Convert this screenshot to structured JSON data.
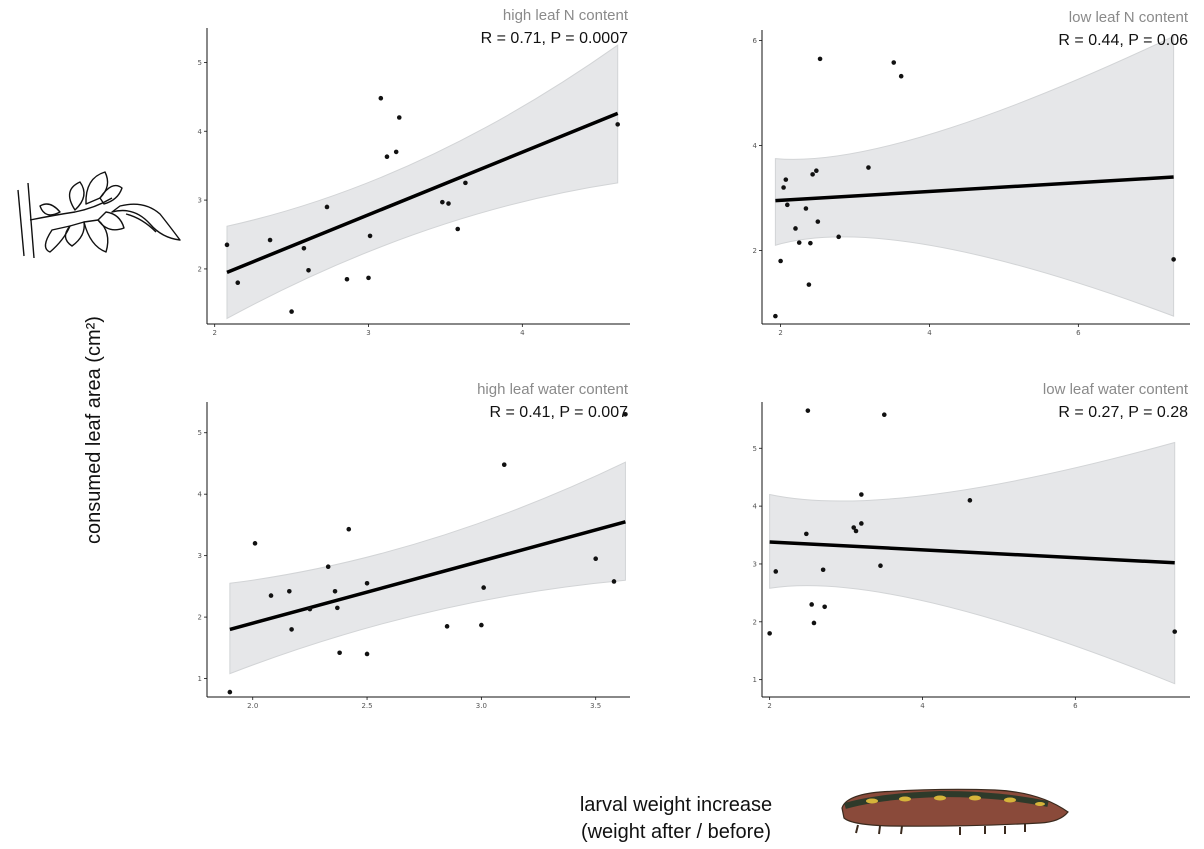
{
  "figure": {
    "ylabel": "consumed leaf area (cm²)",
    "xlabel_line1": "larval weight increase",
    "xlabel_line2": "(weight after / before)",
    "illustrations": [
      "leaf-sprig-icon",
      "caterpillar-icon"
    ]
  },
  "chart_data": [
    {
      "type": "scatter",
      "title": "high leaf N content",
      "stat": "R = 0.71, P = 0.0007",
      "xlim": [
        1.95,
        4.7
      ],
      "ylim": [
        1.2,
        5.5
      ],
      "xticks": [
        2,
        3,
        4
      ],
      "yticks": [
        2,
        3,
        4,
        5
      ],
      "x": [
        2.08,
        2.15,
        2.36,
        2.5,
        2.58,
        2.61,
        2.73,
        2.86,
        3.0,
        3.01,
        3.08,
        3.12,
        3.18,
        3.2,
        3.48,
        3.52,
        3.58,
        3.63,
        4.62
      ],
      "y": [
        2.35,
        1.8,
        2.42,
        1.38,
        2.3,
        1.98,
        2.9,
        1.85,
        1.87,
        2.48,
        4.48,
        3.63,
        3.7,
        4.2,
        2.97,
        2.95,
        2.58,
        3.25,
        4.1
      ],
      "fit": {
        "x": [
          2.08,
          4.62
        ],
        "y": [
          1.95,
          4.26
        ]
      },
      "ci": {
        "x": [
          2.08,
          3.35,
          4.62
        ],
        "upper": [
          2.62,
          3.25,
          5.25
        ],
        "lower": [
          1.28,
          2.82,
          3.25
        ]
      }
    },
    {
      "type": "scatter",
      "title": "low leaf N content",
      "stat": "R = 0.44, P = 0.06",
      "xlim": [
        1.75,
        7.5
      ],
      "ylim": [
        0.6,
        6.2
      ],
      "xticks": [
        2,
        4,
        6
      ],
      "yticks": [
        2,
        4,
        6
      ],
      "x": [
        1.93,
        2.0,
        2.04,
        2.07,
        2.09,
        2.2,
        2.25,
        2.34,
        2.38,
        2.4,
        2.43,
        2.48,
        2.5,
        2.53,
        2.78,
        3.18,
        3.52,
        3.62,
        7.28
      ],
      "y": [
        0.75,
        1.8,
        3.2,
        3.35,
        2.87,
        2.42,
        2.15,
        2.8,
        1.35,
        2.14,
        3.45,
        3.52,
        2.55,
        5.65,
        2.26,
        3.58,
        5.58,
        5.32,
        1.83
      ],
      "fit": {
        "x": [
          1.93,
          7.28
        ],
        "y": [
          2.95,
          3.4
        ]
      },
      "ci": {
        "x": [
          1.93,
          3.5,
          7.28
        ],
        "upper": [
          3.75,
          3.55,
          6.08
        ],
        "lower": [
          2.1,
          2.75,
          0.75
        ]
      }
    },
    {
      "type": "scatter",
      "title": "high leaf water content",
      "stat": "R = 0.41, P = 0.007",
      "xlim": [
        1.8,
        3.65
      ],
      "ylim": [
        0.7,
        5.5
      ],
      "xticks": [
        2.0,
        2.5,
        3.0,
        3.5
      ],
      "yticks": [
        1,
        2,
        3,
        4,
        5
      ],
      "x": [
        1.9,
        2.01,
        2.08,
        2.16,
        2.17,
        2.25,
        2.33,
        2.36,
        2.37,
        2.38,
        2.42,
        2.5,
        2.5,
        2.85,
        3.0,
        3.01,
        3.1,
        3.5,
        3.58,
        3.63
      ],
      "y": [
        0.78,
        3.2,
        2.35,
        2.42,
        1.8,
        2.13,
        2.82,
        2.42,
        2.15,
        1.42,
        3.43,
        2.55,
        1.4,
        1.85,
        1.87,
        2.48,
        4.48,
        2.95,
        2.58,
        5.3
      ],
      "fit": {
        "x": [
          1.9,
          3.63
        ],
        "y": [
          1.8,
          3.55
        ]
      },
      "ci": {
        "x": [
          1.9,
          2.75,
          3.63
        ],
        "upper": [
          2.55,
          2.95,
          4.52
        ],
        "lower": [
          1.08,
          2.3,
          2.6
        ]
      }
    },
    {
      "type": "scatter",
      "title": "low leaf water content",
      "stat": "R = 0.27, P = 0.28",
      "xlim": [
        1.9,
        7.5
      ],
      "ylim": [
        0.7,
        5.8
      ],
      "xticks": [
        2,
        4,
        6
      ],
      "yticks": [
        1,
        2,
        3,
        4,
        5
      ],
      "x": [
        2.0,
        2.08,
        2.48,
        2.5,
        2.55,
        2.58,
        2.7,
        2.72,
        3.1,
        3.13,
        3.2,
        3.2,
        3.45,
        3.5,
        4.62,
        7.3
      ],
      "y": [
        1.8,
        2.87,
        3.52,
        5.65,
        2.3,
        1.98,
        2.9,
        2.26,
        3.63,
        3.57,
        4.2,
        3.7,
        2.97,
        5.58,
        4.1,
        1.83
      ],
      "fit": {
        "x": [
          2.0,
          7.3
        ],
        "y": [
          3.38,
          3.02
        ]
      },
      "ci": {
        "x": [
          2.0,
          3.6,
          7.3
        ],
        "upper": [
          4.2,
          3.75,
          5.1
        ],
        "lower": [
          2.58,
          2.9,
          0.93
        ]
      }
    }
  ]
}
